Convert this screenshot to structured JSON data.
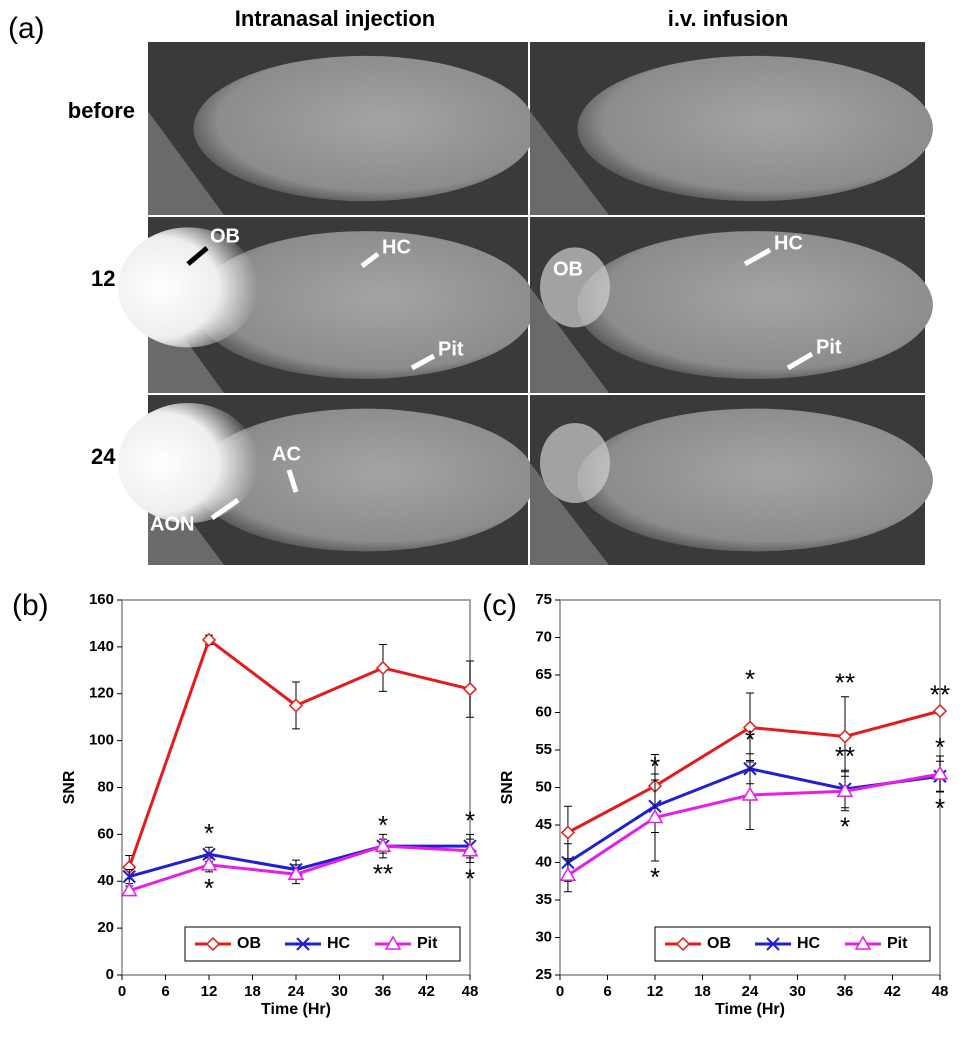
{
  "panel_a": {
    "label": "(a)",
    "columns": [
      "Intranasal injection",
      "i.v. infusion"
    ],
    "rows": [
      "before",
      "12 h",
      "24 h"
    ],
    "annotations": [
      "OB",
      "HC",
      "Pit",
      "OB",
      "HC",
      "Pit",
      "AC",
      "AON"
    ]
  },
  "chart_data": [
    {
      "type": "line",
      "panel_label": "(b)",
      "x_label": "Time (Hr)",
      "y_label": "SNR",
      "x": [
        1,
        12,
        24,
        36,
        48
      ],
      "xlim": [
        0,
        48
      ],
      "xticks": [
        0,
        6,
        12,
        18,
        24,
        30,
        36,
        42,
        48
      ],
      "ylim": [
        0,
        160
      ],
      "yticks": [
        0,
        20,
        40,
        60,
        80,
        100,
        120,
        140,
        160
      ],
      "legend": "lower right",
      "series": [
        {
          "name": "OB",
          "color": "#e41a1c",
          "marker": "diamond",
          "values": [
            46,
            143,
            115,
            131,
            122
          ],
          "errors": [
            5,
            2,
            10,
            10,
            12
          ]
        },
        {
          "name": "HC",
          "color": "#1f1fd6",
          "marker": "x",
          "values": [
            42,
            51.5,
            45,
            55,
            55
          ],
          "errors": [
            3,
            3,
            4,
            3,
            5
          ]
        },
        {
          "name": "Pit",
          "color": "#e61ee6",
          "marker": "triangle",
          "values": [
            36,
            47,
            43,
            55,
            53
          ],
          "errors": [
            2,
            3,
            4,
            5,
            5
          ]
        }
      ],
      "annotations": [
        {
          "text": "*",
          "x": 12,
          "series": 1,
          "side": "above"
        },
        {
          "text": "*",
          "x": 12,
          "series": 2,
          "side": "below"
        },
        {
          "text": "*",
          "x": 36,
          "series": 1,
          "side": "above"
        },
        {
          "text": "**",
          "x": 36,
          "series": 2,
          "side": "below"
        },
        {
          "text": "*",
          "x": 48,
          "series": 1,
          "side": "above"
        },
        {
          "text": "*",
          "x": 48,
          "series": 2,
          "side": "below"
        }
      ]
    },
    {
      "type": "line",
      "panel_label": "(c)",
      "x_label": "Time (Hr)",
      "y_label": "SNR",
      "x": [
        1,
        12,
        24,
        36,
        48
      ],
      "xlim": [
        0,
        48
      ],
      "xticks": [
        0,
        6,
        12,
        18,
        24,
        30,
        36,
        42,
        48
      ],
      "ylim": [
        25,
        75
      ],
      "yticks": [
        25,
        30,
        35,
        40,
        45,
        50,
        55,
        60,
        65,
        70,
        75
      ],
      "legend": "lower right",
      "series": [
        {
          "name": "OB",
          "color": "#e41a1c",
          "marker": "diamond",
          "values": [
            44,
            50.2,
            58,
            56.8,
            60.2
          ],
          "errors": [
            3.5,
            4.2,
            4.6,
            5.3,
            0.3
          ]
        },
        {
          "name": "HC",
          "color": "#1f1fd6",
          "marker": "x",
          "values": [
            40,
            47.5,
            52.5,
            49.8,
            51.5
          ],
          "errors": [
            2.5,
            3.5,
            2,
            2.5,
            2
          ]
        },
        {
          "name": "Pit",
          "color": "#e61ee6",
          "marker": "triangle",
          "values": [
            38.3,
            46,
            49,
            49.5,
            51.8
          ],
          "errors": [
            2.2,
            5.8,
            4.6,
            2.6,
            2.4
          ]
        }
      ],
      "annotations": [
        {
          "text": "*",
          "x": 12,
          "series": 1,
          "side": "above"
        },
        {
          "text": "*",
          "x": 12,
          "series": 2,
          "side": "below"
        },
        {
          "text": "*",
          "x": 24,
          "series": 0,
          "side": "above"
        },
        {
          "text": "*",
          "x": 24,
          "series": 1,
          "side": "above"
        },
        {
          "text": "**",
          "x": 36,
          "series": 0,
          "side": "above"
        },
        {
          "text": "**",
          "x": 36,
          "series": 1,
          "side": "above"
        },
        {
          "text": "*",
          "x": 36,
          "series": 2,
          "side": "below"
        },
        {
          "text": "**",
          "x": 48,
          "series": 0,
          "side": "above"
        },
        {
          "text": "*",
          "x": 48,
          "series": 1,
          "side": "above"
        },
        {
          "text": "*",
          "x": 48,
          "series": 2,
          "side": "below"
        }
      ]
    }
  ]
}
